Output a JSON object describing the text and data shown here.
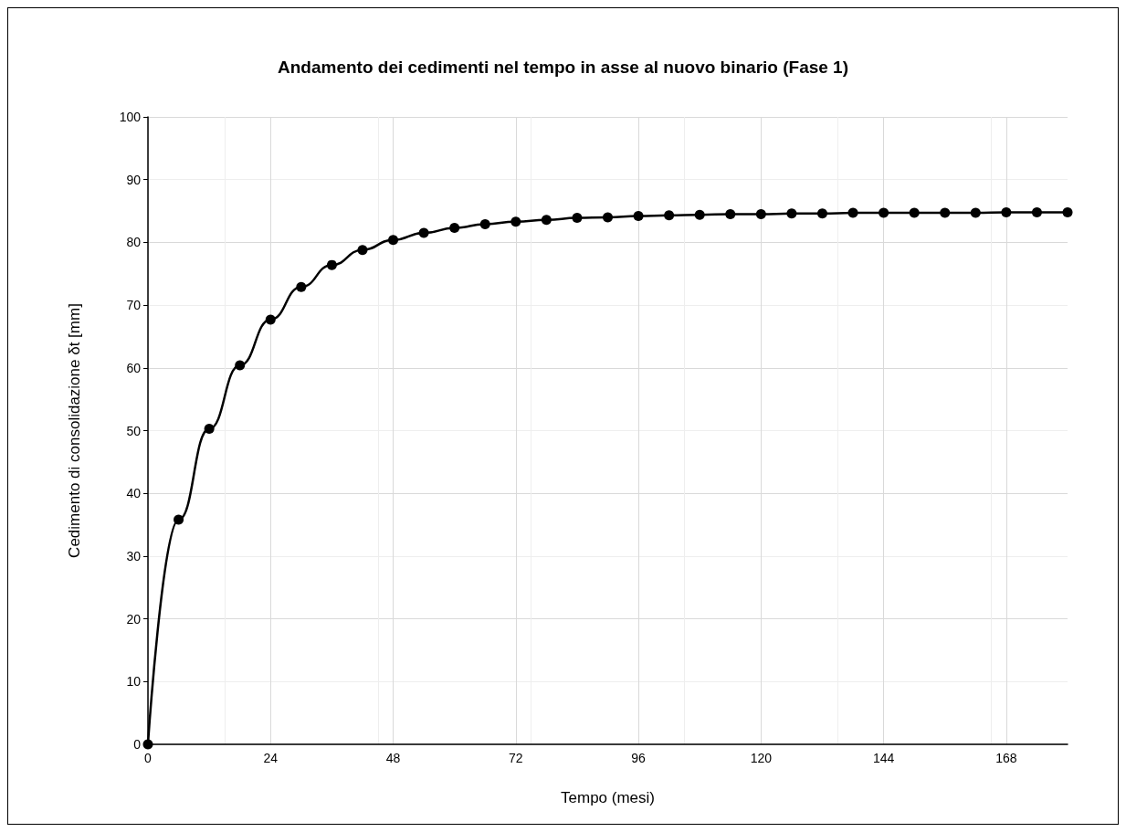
{
  "chart_data": {
    "type": "line",
    "title": "Andamento dei cedimenti nel tempo in asse al nuovo binario (Fase 1)",
    "xlabel": "Tempo (mesi)",
    "ylabel": "Cedimento di consolidazione δt [mm]",
    "x": [
      0,
      6,
      12,
      18,
      24,
      30,
      36,
      42,
      48,
      54,
      60,
      66,
      72,
      78,
      84,
      90,
      96,
      102,
      108,
      114,
      120,
      126,
      132,
      138,
      144,
      150,
      156,
      162,
      168,
      174,
      180
    ],
    "series": [
      {
        "color": "#000000",
        "values": [
          0,
          35.8,
          50.3,
          60.4,
          67.7,
          72.9,
          76.4,
          78.8,
          80.4,
          81.5,
          82.3,
          82.9,
          83.3,
          83.6,
          83.9,
          84.0,
          84.2,
          84.3,
          84.4,
          84.5,
          84.5,
          84.6,
          84.6,
          84.7,
          84.7,
          84.7,
          84.7,
          84.7,
          84.8,
          84.8,
          84.8
        ]
      }
    ],
    "xlim": [
      0,
      180
    ],
    "xticks": [
      0,
      24,
      48,
      72,
      96,
      120,
      144,
      168
    ],
    "ylim": [
      0,
      100
    ],
    "yticks": [
      0,
      10,
      20,
      30,
      40,
      50,
      60,
      70,
      80,
      90,
      100
    ],
    "grid": true,
    "marker": "circle",
    "line_style": "solid"
  }
}
